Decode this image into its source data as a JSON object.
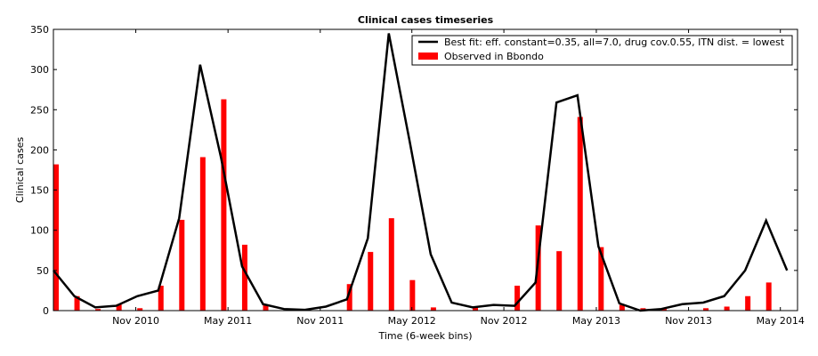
{
  "chart_data": {
    "type": "bar+line",
    "title": "Clinical cases timeseries",
    "xlabel": "Time (6-week bins)",
    "ylabel": "Clinical cases",
    "ylim": [
      0,
      350
    ],
    "yticks": [
      0,
      50,
      100,
      150,
      200,
      250,
      300,
      350
    ],
    "x_tick_labels": [
      {
        "bin": 3.93,
        "label": "Nov 2010"
      },
      {
        "bin": 8.33,
        "label": "May 2011"
      },
      {
        "bin": 12.73,
        "label": "Nov 2011"
      },
      {
        "bin": 17.1,
        "label": "May 2012"
      },
      {
        "bin": 21.49,
        "label": "Nov 2012"
      },
      {
        "bin": 25.9,
        "label": "May 2013"
      },
      {
        "bin": 30.3,
        "label": "Nov 2013"
      },
      {
        "bin": 34.68,
        "label": "May 2014"
      }
    ],
    "bins": 36,
    "legend_position": "upper-right",
    "grid": false,
    "series": [
      {
        "name": "Best fit: eff. constant=0.35, all=7.0, drug cov.0.55, ITN dist. = lowest",
        "kind": "line",
        "color": "#000000",
        "values": [
          50,
          18,
          4,
          6,
          18,
          25,
          115,
          306,
          190,
          55,
          8,
          2,
          1,
          5,
          14,
          90,
          345,
          210,
          70,
          10,
          4,
          7,
          6,
          35,
          259,
          268,
          80,
          9,
          0,
          2,
          8,
          10,
          18,
          50,
          112,
          50
        ]
      },
      {
        "name": "Observed in Bbondo",
        "kind": "bar",
        "color": "#ff0000",
        "values": [
          182,
          18,
          2,
          8,
          3,
          31,
          113,
          191,
          263,
          82,
          7,
          0,
          0,
          0,
          33,
          73,
          115,
          38,
          4,
          0,
          5,
          0,
          31,
          106,
          74,
          241,
          79,
          7,
          3,
          3,
          0,
          3,
          5,
          18,
          35,
          0
        ]
      }
    ]
  }
}
